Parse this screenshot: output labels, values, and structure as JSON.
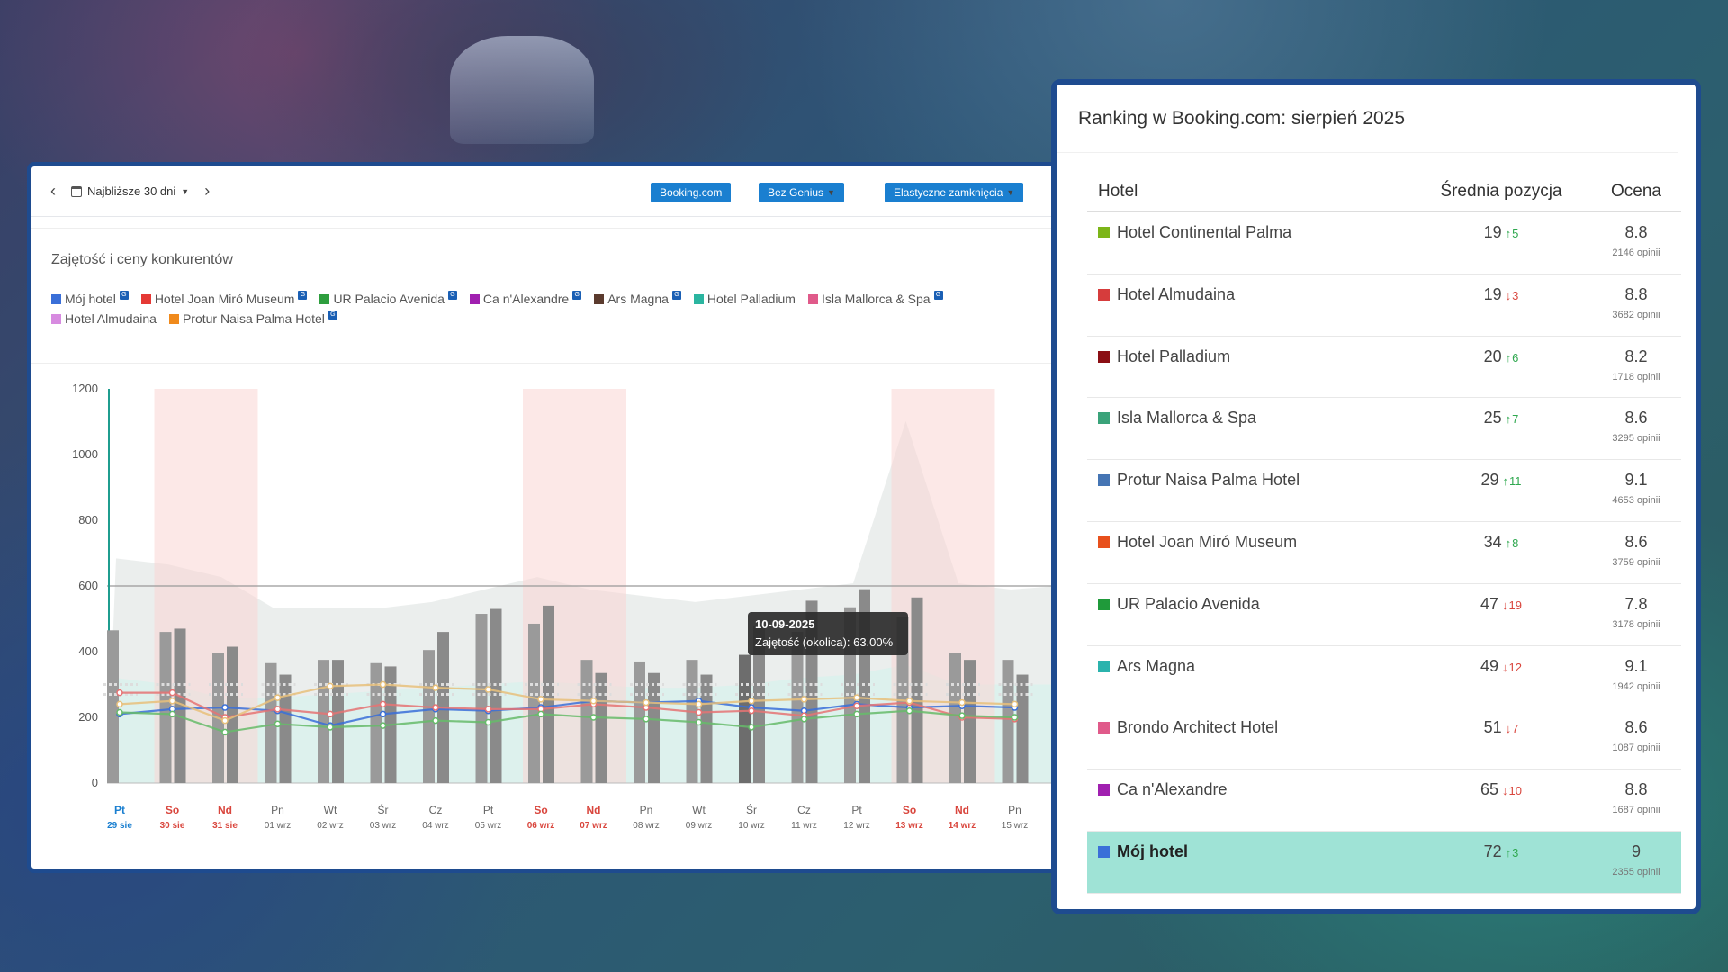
{
  "toolbar": {
    "period_label": "Najbliższe 30 dni",
    "source_button": "Booking.com",
    "genius_button": "Bez Genius",
    "closures_button": "Elastyczne zamknięcia"
  },
  "panel_title": "Zajętość i ceny konkurentów",
  "legend": [
    {
      "label": "Mój hotel",
      "color": "#3a6fd8",
      "badge": "G"
    },
    {
      "label": "Hotel Joan Miró Museum",
      "color": "#e53935",
      "badge": "G"
    },
    {
      "label": "UR Palacio Avenida",
      "color": "#2e9e3e",
      "badge": "G"
    },
    {
      "label": "Ca n'Alexandre",
      "color": "#a020b0",
      "badge": "G"
    },
    {
      "label": "Ars Magna",
      "color": "#5b3b2e",
      "badge": "G"
    },
    {
      "label": "Hotel Palladium",
      "color": "#2bb5a0",
      "badge": ""
    },
    {
      "label": "Isla Mallorca & Spa",
      "color": "#e05a8a",
      "badge": "G"
    },
    {
      "label": "Hotel Almudaina",
      "color": "#d78be0",
      "badge": ""
    },
    {
      "label": "Protur Naisa Palma Hotel",
      "color": "#f08a1c",
      "badge": "G"
    }
  ],
  "chart_data": {
    "type": "bar",
    "ylim": [
      0,
      1200
    ],
    "yticks": [
      0,
      200,
      400,
      600,
      800,
      1000,
      1200
    ],
    "reference_line": 600,
    "categories": [
      {
        "day": "Pt",
        "date": "29 sie",
        "weekend": false,
        "today": true
      },
      {
        "day": "So",
        "date": "30 sie",
        "weekend": true
      },
      {
        "day": "Nd",
        "date": "31 sie",
        "weekend": true
      },
      {
        "day": "Pn",
        "date": "01 wrz",
        "weekend": false
      },
      {
        "day": "Wt",
        "date": "02 wrz",
        "weekend": false
      },
      {
        "day": "Śr",
        "date": "03 wrz",
        "weekend": false
      },
      {
        "day": "Cz",
        "date": "04 wrz",
        "weekend": false
      },
      {
        "day": "Pt",
        "date": "05 wrz",
        "weekend": false
      },
      {
        "day": "So",
        "date": "06 wrz",
        "weekend": true
      },
      {
        "day": "Nd",
        "date": "07 wrz",
        "weekend": true
      },
      {
        "day": "Pn",
        "date": "08 wrz",
        "weekend": false
      },
      {
        "day": "Wt",
        "date": "09 wrz",
        "weekend": false
      },
      {
        "day": "Śr",
        "date": "10 wrz",
        "weekend": false
      },
      {
        "day": "Cz",
        "date": "11 wrz",
        "weekend": false
      },
      {
        "day": "Pt",
        "date": "12 wrz",
        "weekend": false
      },
      {
        "day": "So",
        "date": "13 wrz",
        "weekend": true
      },
      {
        "day": "Nd",
        "date": "14 wrz",
        "weekend": true
      },
      {
        "day": "Pn",
        "date": "15 wrz",
        "weekend": false
      }
    ],
    "bars_a": [
      465,
      460,
      395,
      365,
      375,
      365,
      405,
      515,
      485,
      375,
      370,
      375,
      390,
      460,
      535,
      505,
      395,
      375
    ],
    "bars_b": null,
    "bars_b_values": [
      null,
      470,
      415,
      330,
      375,
      355,
      460,
      530,
      540,
      335,
      335,
      330,
      480,
      555,
      590,
      565,
      375,
      330
    ],
    "series": [
      {
        "name": "Mój hotel",
        "color": "#3a6fd8",
        "values": [
          210,
          225,
          230,
          220,
          175,
          210,
          225,
          220,
          230,
          250,
          245,
          250,
          230,
          220,
          240,
          230,
          235,
          230
        ]
      },
      {
        "name": "Hotel Joan Miró Museum",
        "color": "#e57373",
        "values": [
          275,
          275,
          200,
          225,
          210,
          240,
          230,
          225,
          225,
          240,
          230,
          215,
          220,
          205,
          235,
          245,
          200,
          195
        ]
      },
      {
        "name": "UR Palacio Avenida",
        "color": "#66bb6a",
        "values": [
          215,
          210,
          155,
          180,
          170,
          175,
          190,
          185,
          210,
          200,
          195,
          185,
          170,
          195,
          210,
          220,
          205,
          200
        ]
      },
      {
        "name": "Protur Naisa Palma Hotel",
        "color": "#e8c07a",
        "values": [
          240,
          250,
          190,
          260,
          295,
          300,
          290,
          285,
          255,
          250,
          245,
          240,
          250,
          255,
          260,
          250,
          245,
          240
        ]
      }
    ],
    "tooltip": {
      "title": "10-09-2025",
      "text": "Zajętość (okolica): 63.00%"
    }
  },
  "ranking": {
    "title": "Ranking w Booking.com: sierpień 2025",
    "headers": {
      "hotel": "Hotel",
      "position": "Średnia pozycja",
      "rating": "Ocena"
    },
    "rows": [
      {
        "name": "Hotel Continental Palma",
        "color": "#7cb518",
        "position": "19",
        "trend": "up",
        "delta": "5",
        "rating": "8.8",
        "reviews": "2146 opinii"
      },
      {
        "name": "Hotel Almudaina",
        "color": "#d63c3c",
        "position": "19",
        "trend": "down",
        "delta": "3",
        "rating": "8.8",
        "reviews": "3682 opinii"
      },
      {
        "name": "Hotel Palladium",
        "color": "#8b0f14",
        "position": "20",
        "trend": "up",
        "delta": "6",
        "rating": "8.2",
        "reviews": "1718 opinii"
      },
      {
        "name": "Isla Mallorca & Spa",
        "color": "#3aa37a",
        "position": "25",
        "trend": "up",
        "delta": "7",
        "rating": "8.6",
        "reviews": "3295 opinii"
      },
      {
        "name": "Protur Naisa Palma Hotel",
        "color": "#4575b4",
        "position": "29",
        "trend": "up",
        "delta": "11",
        "rating": "9.1",
        "reviews": "4653 opinii"
      },
      {
        "name": "Hotel Joan Miró Museum",
        "color": "#e8501c",
        "position": "34",
        "trend": "up",
        "delta": "8",
        "rating": "8.6",
        "reviews": "3759 opinii"
      },
      {
        "name": "UR Palacio Avenida",
        "color": "#1f9a3a",
        "position": "47",
        "trend": "down",
        "delta": "19",
        "rating": "7.8",
        "reviews": "3178 opinii"
      },
      {
        "name": "Ars Magna",
        "color": "#2bb3ad",
        "position": "49",
        "trend": "down",
        "delta": "12",
        "rating": "9.1",
        "reviews": "1942 opinii"
      },
      {
        "name": "Brondo Architect Hotel",
        "color": "#e05a8a",
        "position": "51",
        "trend": "down",
        "delta": "7",
        "rating": "8.6",
        "reviews": "1087 opinii"
      },
      {
        "name": "Ca n'Alexandre",
        "color": "#a020b0",
        "position": "65",
        "trend": "down",
        "delta": "10",
        "rating": "8.8",
        "reviews": "1687 opinii"
      },
      {
        "name": "Mój hotel",
        "color": "#3a6fd8",
        "position": "72",
        "trend": "up",
        "delta": "3",
        "rating": "9",
        "reviews": "2355 opinii",
        "highlight": true
      }
    ]
  }
}
